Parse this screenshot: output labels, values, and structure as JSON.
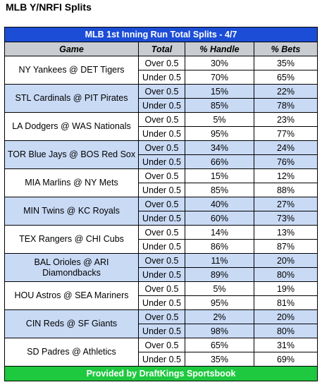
{
  "page_title": "MLB Y/NRFI Splits",
  "table": {
    "title": "MLB 1st Inning Run Total Splits - 4/7",
    "columns": [
      "Game",
      "Total",
      "% Handle",
      "% Bets"
    ],
    "games": [
      {
        "game": "NY Yankees @ DET Tigers",
        "rows": [
          {
            "total": "Over 0.5",
            "handle": "30%",
            "bets": "35%"
          },
          {
            "total": "Under 0.5",
            "handle": "70%",
            "bets": "65%"
          }
        ]
      },
      {
        "game": "STL Cardinals @ PIT Pirates",
        "rows": [
          {
            "total": "Over 0.5",
            "handle": "15%",
            "bets": "22%"
          },
          {
            "total": "Under 0.5",
            "handle": "85%",
            "bets": "78%"
          }
        ]
      },
      {
        "game": "LA Dodgers @ WAS Nationals",
        "rows": [
          {
            "total": "Over 0.5",
            "handle": "5%",
            "bets": "23%"
          },
          {
            "total": "Under 0.5",
            "handle": "95%",
            "bets": "77%"
          }
        ]
      },
      {
        "game": "TOR Blue Jays @ BOS Red Sox",
        "rows": [
          {
            "total": "Over 0.5",
            "handle": "34%",
            "bets": "24%"
          },
          {
            "total": "Under 0.5",
            "handle": "66%",
            "bets": "76%"
          }
        ]
      },
      {
        "game": "MIA Marlins @ NY Mets",
        "rows": [
          {
            "total": "Over 0.5",
            "handle": "15%",
            "bets": "12%"
          },
          {
            "total": "Under 0.5",
            "handle": "85%",
            "bets": "88%"
          }
        ]
      },
      {
        "game": "MIN Twins @ KC Royals",
        "rows": [
          {
            "total": "Over 0.5",
            "handle": "40%",
            "bets": "27%"
          },
          {
            "total": "Under 0.5",
            "handle": "60%",
            "bets": "73%"
          }
        ]
      },
      {
        "game": "TEX Rangers @ CHI Cubs",
        "rows": [
          {
            "total": "Over 0.5",
            "handle": "14%",
            "bets": "13%"
          },
          {
            "total": "Under 0.5",
            "handle": "86%",
            "bets": "87%"
          }
        ]
      },
      {
        "game": "BAL Orioles @ ARI Diamondbacks",
        "rows": [
          {
            "total": "Over 0.5",
            "handle": "11%",
            "bets": "20%"
          },
          {
            "total": "Under 0.5",
            "handle": "89%",
            "bets": "80%"
          }
        ]
      },
      {
        "game": "HOU Astros @ SEA Mariners",
        "rows": [
          {
            "total": "Over 0.5",
            "handle": "5%",
            "bets": "19%"
          },
          {
            "total": "Under 0.5",
            "handle": "95%",
            "bets": "81%"
          }
        ]
      },
      {
        "game": "CIN Reds @ SF Giants",
        "rows": [
          {
            "total": "Over 0.5",
            "handle": "2%",
            "bets": "20%"
          },
          {
            "total": "Under 0.5",
            "handle": "98%",
            "bets": "80%"
          }
        ]
      },
      {
        "game": "SD Padres @ Athletics",
        "rows": [
          {
            "total": "Over 0.5",
            "handle": "65%",
            "bets": "31%"
          },
          {
            "total": "Under 0.5",
            "handle": "35%",
            "bets": "69%"
          }
        ]
      }
    ],
    "footer": "Provided by DraftKings Sportsbook"
  },
  "colors": {
    "banner": "#1c4dd6",
    "header": "#c9ccd1",
    "shade": "#c9daf5",
    "footer": "#1fc93f"
  }
}
